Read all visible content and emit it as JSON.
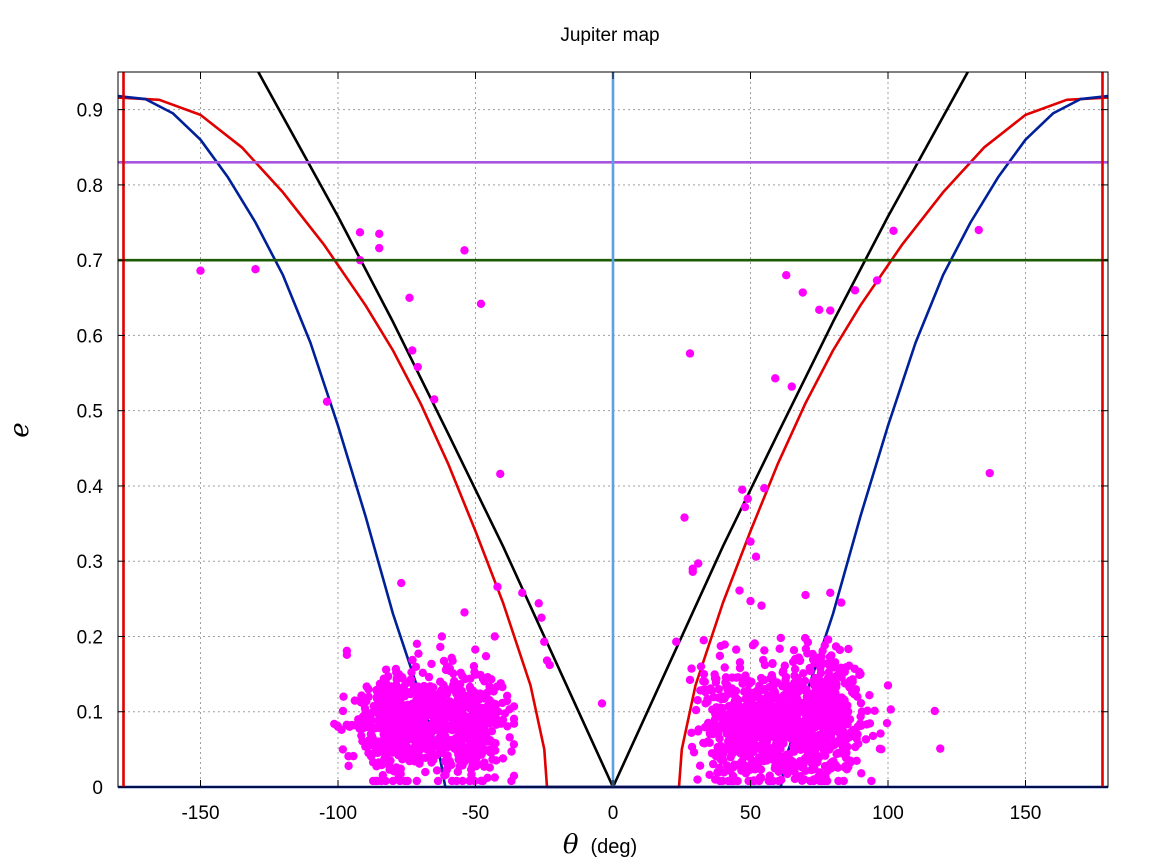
{
  "chart_data": {
    "type": "scatter",
    "title": "Jupiter map",
    "xlabel": {
      "symbol": "θ",
      "unit": "(deg)"
    },
    "ylabel": "e",
    "xlim": [
      -180,
      180
    ],
    "ylim": [
      0,
      0.95
    ],
    "xticks": [
      -150,
      -100,
      -50,
      0,
      50,
      100,
      150
    ],
    "yticks": [
      0,
      0.1,
      0.2,
      0.3,
      0.4,
      0.5,
      0.6,
      0.7,
      0.8,
      0.9
    ],
    "grid": true,
    "legend": "none",
    "colors": {
      "points": "#ff00ff",
      "black_curve": "#000000",
      "red_curve": "#e00000",
      "blue_curve": "#00209a",
      "e_0_83_line": "#a855e0",
      "e_0_70_line": "#1d5a05",
      "theta_0_line": "#5ea0e6"
    },
    "reference_lines": [
      {
        "orientation": "horizontal",
        "value": 0.83,
        "color": "#a855e0"
      },
      {
        "orientation": "horizontal",
        "value": 0.7,
        "color": "#1d5a05"
      },
      {
        "orientation": "horizontal",
        "value": 0.0,
        "color": "#00209a"
      },
      {
        "orientation": "vertical",
        "value": 0,
        "color": "#5ea0e6"
      },
      {
        "orientation": "vertical",
        "value": -178,
        "color": "#e00000"
      },
      {
        "orientation": "vertical",
        "value": 178,
        "color": "#e00000"
      }
    ],
    "curves": [
      {
        "color": "#000000",
        "points": [
          [
            -129,
            0.95
          ],
          [
            -100,
            0.758
          ],
          [
            -80,
            0.618
          ],
          [
            -60,
            0.47
          ],
          [
            -40,
            0.32
          ],
          [
            -20,
            0.16
          ],
          [
            0,
            0
          ],
          [
            20,
            0.16
          ],
          [
            40,
            0.32
          ],
          [
            60,
            0.47
          ],
          [
            80,
            0.618
          ],
          [
            100,
            0.758
          ],
          [
            129,
            0.95
          ]
        ]
      },
      {
        "color": "#e00000",
        "points": [
          [
            -180,
            0.916
          ],
          [
            -165,
            0.913
          ],
          [
            -150,
            0.893
          ],
          [
            -135,
            0.85
          ],
          [
            -120,
            0.79
          ],
          [
            -105,
            0.72
          ],
          [
            -90,
            0.64
          ],
          [
            -80,
            0.58
          ],
          [
            -70,
            0.51
          ],
          [
            -60,
            0.43
          ],
          [
            -50,
            0.34
          ],
          [
            -40,
            0.245
          ],
          [
            -30,
            0.135
          ],
          [
            -25,
            0.05
          ],
          [
            -24,
            0
          ],
          [
            24,
            0
          ],
          [
            25,
            0.05
          ],
          [
            30,
            0.135
          ],
          [
            40,
            0.245
          ],
          [
            50,
            0.34
          ],
          [
            60,
            0.43
          ],
          [
            70,
            0.51
          ],
          [
            80,
            0.58
          ],
          [
            90,
            0.64
          ],
          [
            105,
            0.72
          ],
          [
            120,
            0.79
          ],
          [
            135,
            0.85
          ],
          [
            150,
            0.893
          ],
          [
            165,
            0.913
          ],
          [
            180,
            0.916
          ]
        ]
      },
      {
        "color": "#00209a",
        "points": [
          [
            -180,
            0.918
          ],
          [
            -170,
            0.914
          ],
          [
            -160,
            0.895
          ],
          [
            -150,
            0.86
          ],
          [
            -140,
            0.81
          ],
          [
            -130,
            0.75
          ],
          [
            -120,
            0.68
          ],
          [
            -110,
            0.59
          ],
          [
            -100,
            0.48
          ],
          [
            -90,
            0.36
          ],
          [
            -80,
            0.23
          ],
          [
            -70,
            0.12
          ],
          [
            -63,
            0.04
          ],
          [
            -61,
            0
          ],
          [
            61,
            0
          ],
          [
            63,
            0.04
          ],
          [
            70,
            0.12
          ],
          [
            80,
            0.23
          ],
          [
            90,
            0.36
          ],
          [
            100,
            0.48
          ],
          [
            110,
            0.59
          ],
          [
            120,
            0.68
          ],
          [
            130,
            0.75
          ],
          [
            140,
            0.81
          ],
          [
            150,
            0.86
          ],
          [
            160,
            0.895
          ],
          [
            170,
            0.914
          ],
          [
            180,
            0.918
          ]
        ]
      }
    ],
    "points": [
      [
        -150,
        0.686
      ],
      [
        -130,
        0.688
      ],
      [
        -104,
        0.512
      ],
      [
        -92,
        0.737
      ],
      [
        -92,
        0.7
      ],
      [
        -85,
        0.735
      ],
      [
        -85,
        0.716
      ],
      [
        -77,
        0.271
      ],
      [
        -74,
        0.65
      ],
      [
        -73,
        0.58
      ],
      [
        -71,
        0.558
      ],
      [
        -65,
        0.515
      ],
      [
        -54,
        0.713
      ],
      [
        -48,
        0.642
      ],
      [
        -41,
        0.416
      ],
      [
        -42,
        0.266
      ],
      [
        -33,
        0.258
      ],
      [
        -27,
        0.244
      ],
      [
        -26,
        0.225
      ],
      [
        -25,
        0.193
      ],
      [
        -24,
        0.168
      ],
      [
        -23,
        0.162
      ],
      [
        -4,
        0.111
      ],
      [
        -54,
        0.232
      ],
      [
        -43,
        0.2
      ],
      [
        -98,
        0.12
      ],
      [
        -100,
        0.08
      ],
      [
        28,
        0.576
      ],
      [
        26,
        0.358
      ],
      [
        29,
        0.29
      ],
      [
        29,
        0.286
      ],
      [
        31,
        0.297
      ],
      [
        33,
        0.195
      ],
      [
        23,
        0.193
      ],
      [
        46,
        0.261
      ],
      [
        47,
        0.395
      ],
      [
        48,
        0.372
      ],
      [
        49,
        0.383
      ],
      [
        50,
        0.326
      ],
      [
        52,
        0.306
      ],
      [
        54,
        0.241
      ],
      [
        55,
        0.397
      ],
      [
        50,
        0.247
      ],
      [
        59,
        0.543
      ],
      [
        63,
        0.68
      ],
      [
        65,
        0.532
      ],
      [
        69,
        0.657
      ],
      [
        75,
        0.634
      ],
      [
        79,
        0.633
      ],
      [
        83,
        0.245
      ],
      [
        88,
        0.66
      ],
      [
        96,
        0.673
      ],
      [
        102,
        0.739
      ],
      [
        133,
        0.74
      ],
      [
        137,
        0.417
      ],
      [
        117,
        0.101
      ],
      [
        119,
        0.051
      ],
      [
        101,
        0.103
      ],
      [
        100,
        0.135
      ],
      [
        90,
        0.15
      ],
      [
        79,
        0.258
      ],
      [
        70,
        0.255
      ],
      [
        32,
        0.16
      ],
      [
        36,
        0.128
      ]
    ],
    "clusters": [
      {
        "cx": -76,
        "cy": 0.085,
        "sx": 9,
        "sy": 0.045,
        "n": 520,
        "seed": 11,
        "xmin": -104,
        "xmax": -56
      },
      {
        "cx": -53,
        "cy": 0.085,
        "sx": 7,
        "sy": 0.045,
        "n": 360,
        "seed": 23,
        "xmin": -66,
        "xmax": -36
      },
      {
        "cx": 50,
        "cy": 0.085,
        "sx": 9,
        "sy": 0.05,
        "n": 520,
        "seed": 37,
        "xmin": 28,
        "xmax": 66
      },
      {
        "cx": 75,
        "cy": 0.09,
        "sx": 9,
        "sy": 0.05,
        "n": 560,
        "seed": 53,
        "xmin": 58,
        "xmax": 108
      }
    ]
  }
}
